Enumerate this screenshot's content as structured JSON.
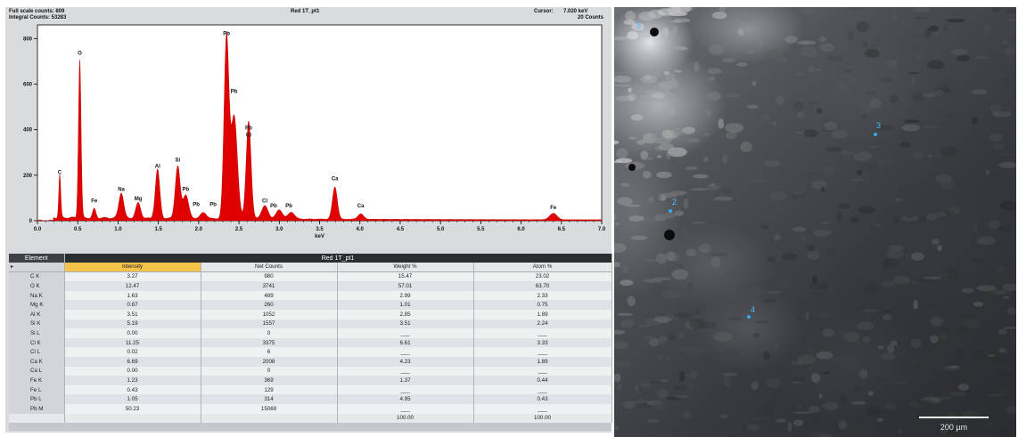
{
  "spectrum_header": {
    "full_scale": "Full scale counts: 809",
    "integral": "Integral Counts: 53283",
    "title": "Red 1T_pt1",
    "cursor_label": "Cursor:",
    "cursor_value": "7.020 keV",
    "counts": "20 Counts"
  },
  "chart_data": {
    "type": "area",
    "title": "Red 1T_pt1",
    "xlabel": "keV",
    "ylabel": "",
    "xlim": [
      0.0,
      7.0
    ],
    "ylim": [
      0,
      860
    ],
    "x_ticks": [
      "0.0",
      "0.5",
      "1.0",
      "1.5",
      "2.0",
      "2.5",
      "3.0",
      "3.5",
      "4.0",
      "4.5",
      "5.0",
      "5.5",
      "6.0",
      "6.5",
      "7.0"
    ],
    "y_ticks": [
      "0",
      "200",
      "400",
      "600",
      "800"
    ],
    "color": "#e00000",
    "peaks": [
      {
        "x": 0.277,
        "y": 190,
        "w": 0.012
      },
      {
        "x": 0.525,
        "y": 695,
        "w": 0.016
      },
      {
        "x": 0.705,
        "y": 40,
        "w": 0.02
      },
      {
        "x": 1.04,
        "y": 112,
        "w": 0.03
      },
      {
        "x": 1.25,
        "y": 68,
        "w": 0.03
      },
      {
        "x": 1.49,
        "y": 215,
        "w": 0.028
      },
      {
        "x": 1.74,
        "y": 230,
        "w": 0.03
      },
      {
        "x": 1.84,
        "y": 105,
        "w": 0.035
      },
      {
        "x": 2.06,
        "y": 26,
        "w": 0.04
      },
      {
        "x": 2.345,
        "y": 790,
        "w": 0.03
      },
      {
        "x": 2.44,
        "y": 450,
        "w": 0.04
      },
      {
        "x": 2.62,
        "y": 430,
        "w": 0.03
      },
      {
        "x": 2.82,
        "y": 58,
        "w": 0.04
      },
      {
        "x": 3.0,
        "y": 40,
        "w": 0.04
      },
      {
        "x": 3.15,
        "y": 30,
        "w": 0.04
      },
      {
        "x": 3.69,
        "y": 142,
        "w": 0.03
      },
      {
        "x": 4.01,
        "y": 24,
        "w": 0.035
      },
      {
        "x": 6.4,
        "y": 28,
        "w": 0.045
      }
    ],
    "baseline": 12,
    "labels": [
      {
        "text": "C",
        "x": 0.277,
        "y": 205
      },
      {
        "text": "O",
        "x": 0.525,
        "y": 730
      },
      {
        "text": "Fe",
        "x": 0.705,
        "y": 80
      },
      {
        "text": "Na",
        "x": 1.04,
        "y": 130
      },
      {
        "text": "Mg",
        "x": 1.25,
        "y": 90
      },
      {
        "text": "Al",
        "x": 1.49,
        "y": 232
      },
      {
        "text": "Si",
        "x": 1.74,
        "y": 260
      },
      {
        "text": "Pb",
        "x": 1.84,
        "y": 130
      },
      {
        "text": "Pb",
        "x": 1.97,
        "y": 65
      },
      {
        "text": "Pb",
        "x": 2.18,
        "y": 65
      },
      {
        "text": "Pb",
        "x": 2.345,
        "y": 815
      },
      {
        "text": "Pb",
        "x": 2.44,
        "y": 560
      },
      {
        "text": "Pb",
        "x": 2.62,
        "y": 400
      },
      {
        "text": "Cl",
        "x": 2.62,
        "y": 370
      },
      {
        "text": "Cl",
        "x": 2.82,
        "y": 80
      },
      {
        "text": "Pb",
        "x": 2.93,
        "y": 58
      },
      {
        "text": "Pb",
        "x": 3.12,
        "y": 58
      },
      {
        "text": "Ca",
        "x": 3.69,
        "y": 178
      },
      {
        "text": "Ca",
        "x": 4.01,
        "y": 58
      },
      {
        "text": "Fe",
        "x": 6.4,
        "y": 50
      }
    ]
  },
  "table": {
    "element_header": "Element",
    "title": "Red 1T_pt1",
    "columns": [
      "Intensity",
      "Net Counts",
      "Weight %",
      "Atom %"
    ],
    "rows": [
      [
        "C K",
        "3.27",
        "980",
        "15.47",
        "23.02"
      ],
      [
        "O K",
        "12.47",
        "3741",
        "57.01",
        "63.70"
      ],
      [
        "Na K",
        "1.63",
        "489",
        "2.99",
        "2.33"
      ],
      [
        "Mg K",
        "0.87",
        "260",
        "1.01",
        "0.75"
      ],
      [
        "Al K",
        "3.51",
        "1052",
        "2.85",
        "1.89"
      ],
      [
        "Si K",
        "5.19",
        "1557",
        "3.51",
        "2.24"
      ],
      [
        "Si L",
        "0.00",
        "0",
        "___",
        "___"
      ],
      [
        "Cl K",
        "11.25",
        "3375",
        "6.61",
        "3.33"
      ],
      [
        "Cl L",
        "0.02",
        "6",
        "___",
        "___"
      ],
      [
        "Ca K",
        "6.69",
        "2008",
        "4.23",
        "1.89"
      ],
      [
        "Ca L",
        "0.00",
        "0",
        "___",
        "___"
      ],
      [
        "Fe K",
        "1.23",
        "369",
        "1.37",
        "0.44"
      ],
      [
        "Fe L",
        "0.43",
        "129",
        "___",
        "___"
      ],
      [
        "Pb L",
        "1.05",
        "314",
        "4.95",
        "0.43"
      ],
      [
        "Pb M",
        "50.23",
        "15069",
        "___",
        "___"
      ]
    ],
    "totals": [
      "",
      "",
      "",
      "100.00",
      "100.00"
    ]
  },
  "sem": {
    "points": [
      "3",
      "3",
      "2",
      "4"
    ],
    "scale_label": "200 µm"
  }
}
